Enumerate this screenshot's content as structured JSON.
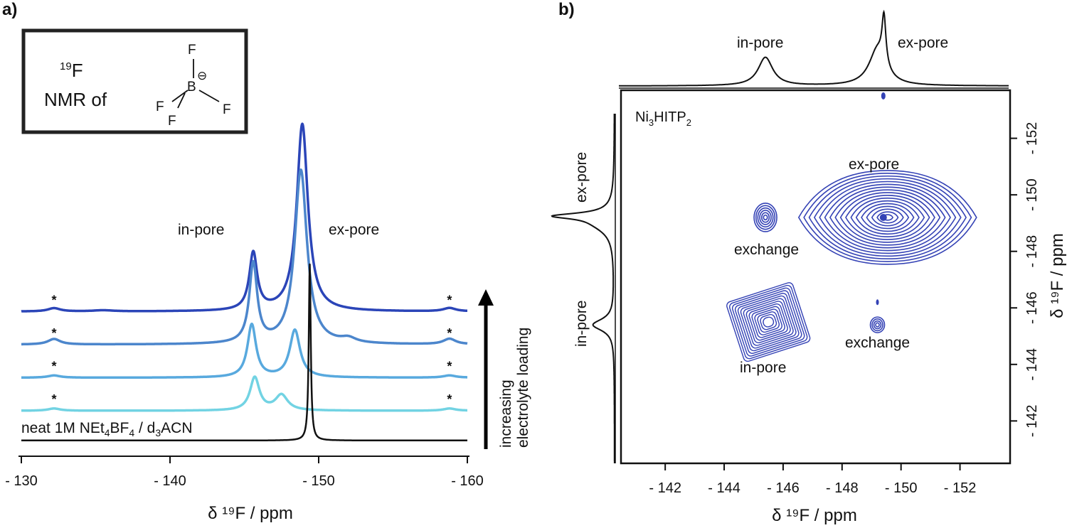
{
  "panel_a_label": "a)",
  "panel_b_label": "b)",
  "inset": {
    "line1_sup": "19",
    "line1": "F",
    "line2": "NMR of",
    "molecule_atoms": [
      "F",
      "F",
      "F",
      "F",
      "B"
    ],
    "charge": "⊖"
  },
  "chart_data": [
    {
      "type": "line",
      "panel": "a",
      "xlabel": "δ ¹⁹F / ppm",
      "xlim": [
        -130,
        -160
      ],
      "x_ticks": [
        "- 130",
        "- 140",
        "- 150",
        "- 160"
      ],
      "x_tick_values": [
        -130,
        -140,
        -150,
        -160
      ],
      "annotations": [
        "in-pore",
        "ex-pore"
      ],
      "side_label_lines": [
        "increasing",
        "electrolyte loading"
      ],
      "spinning_sideband_marker": "*",
      "spinning_sideband_positions": [
        -132.2,
        -158.8
      ],
      "baseline_label": {
        "parts": [
          "neat 1M NEt",
          "4",
          "BF",
          "4",
          " / d",
          "3",
          "ACN"
        ]
      },
      "series": [
        {
          "color": "#2B45B8",
          "offset": 0.9,
          "peaks": [
            {
              "x": -132.2,
              "h": 0.03,
              "w": 0.5
            },
            {
              "x": -135.5,
              "h": 0.01,
              "w": 0.8
            },
            {
              "x": -145.6,
              "h": 0.52,
              "w": 0.32
            },
            {
              "x": -148.9,
              "h": 1.7,
              "w": 0.45
            },
            {
              "x": -158.8,
              "h": 0.03,
              "w": 0.5
            }
          ]
        },
        {
          "color": "#4C86CC",
          "offset": 0.6,
          "peaks": [
            {
              "x": -132.2,
              "h": 0.05,
              "w": 0.5
            },
            {
              "x": -145.6,
              "h": 0.72,
              "w": 0.32
            },
            {
              "x": -148.8,
              "h": 1.58,
              "w": 0.5
            },
            {
              "x": -152.0,
              "h": 0.04,
              "w": 0.6
            },
            {
              "x": -158.8,
              "h": 0.05,
              "w": 0.5
            }
          ]
        },
        {
          "color": "#58A9DE",
          "offset": 0.3,
          "peaks": [
            {
              "x": -132.2,
              "h": 0.02,
              "w": 0.5
            },
            {
              "x": -145.5,
              "h": 0.48,
              "w": 0.35
            },
            {
              "x": -148.4,
              "h": 0.43,
              "w": 0.42
            },
            {
              "x": -158.8,
              "h": 0.02,
              "w": 0.5
            }
          ]
        },
        {
          "color": "#72D3E3",
          "offset": 0.0,
          "peaks": [
            {
              "x": -132.2,
              "h": 0.02,
              "w": 0.5
            },
            {
              "x": -145.7,
              "h": 0.3,
              "w": 0.38
            },
            {
              "x": -147.5,
              "h": 0.14,
              "w": 0.5
            },
            {
              "x": -158.8,
              "h": 0.02,
              "w": 0.5
            }
          ]
        },
        {
          "color": "#111111",
          "offset": -0.27,
          "peaks": [
            {
              "x": -149.4,
              "h": 1.6,
              "w": 0.08
            }
          ]
        }
      ]
    },
    {
      "type": "contour",
      "panel": "b",
      "xlabel": "δ ¹⁹F / ppm",
      "ylabel": "δ ¹⁹F / ppm",
      "xlim": [
        -140.5,
        -153.7
      ],
      "ylim": [
        -140.5,
        -153.7
      ],
      "x_ticks": [
        "- 142",
        "- 144",
        "- 146",
        "- 148",
        "- 150",
        "- 152"
      ],
      "x_tick_values": [
        -142,
        -144,
        -146,
        -148,
        -150,
        -152
      ],
      "y_ticks": [
        "- 142",
        "- 144",
        "- 146",
        "- 148",
        "- 150",
        "- 152"
      ],
      "y_tick_values": [
        -142,
        -144,
        -146,
        -148,
        -150,
        -152
      ],
      "sample_label": {
        "parts": [
          "Ni",
          "3",
          "HITP",
          "2"
        ]
      },
      "projection_labels": {
        "top_left": "in-pore",
        "top_right": "ex-pore",
        "side_top": "ex-pore",
        "side_bottom": "in-pore"
      },
      "peak_labels": [
        "ex-pore",
        "exchange",
        "exchange",
        "in-pore"
      ],
      "contour_color": "#3442B5",
      "peaks": [
        {
          "name": "ex-pore diagonal",
          "x": -149.4,
          "y": -149.2
        },
        {
          "name": "exchange (upper)",
          "x": -145.4,
          "y": -149.2
        },
        {
          "name": "exchange (lower)",
          "x": -149.2,
          "y": -145.4
        },
        {
          "name": "in-pore diagonal",
          "x": -145.5,
          "y": -145.5
        }
      ]
    }
  ]
}
